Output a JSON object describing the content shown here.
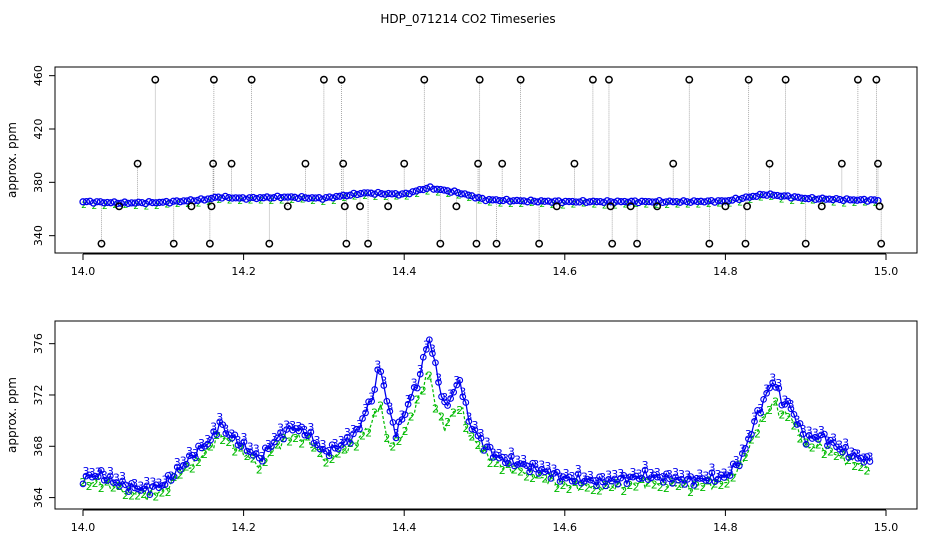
{
  "title": "HDP_071214  CO2 Timeseries",
  "colors": {
    "blue": "#0000ee",
    "green": "#00bb00",
    "cyan": "#00cccc",
    "grey": "#888888",
    "black": "#000000"
  },
  "chart_data": [
    {
      "type": "scatter",
      "title": "HDP_071214  CO2 Timeseries",
      "xlabel": "",
      "ylabel": "approx. ppm",
      "xlim": [
        14.0,
        15.0
      ],
      "ylim": [
        330,
        462
      ],
      "x_ticks": [
        14.0,
        14.2,
        14.4,
        14.6,
        14.8,
        15.0
      ],
      "y_ticks": [
        340,
        380,
        420,
        460
      ],
      "series": [
        {
          "marker": "o",
          "color": "#0000ee",
          "points": [
            [
              14.0,
              365.5
            ],
            [
              14.05,
              364.5
            ],
            [
              14.1,
              365
            ],
            [
              14.15,
              367
            ],
            [
              14.17,
              369
            ],
            [
              14.2,
              368
            ],
            [
              14.25,
              369
            ],
            [
              14.3,
              368
            ],
            [
              14.35,
              372
            ],
            [
              14.4,
              371
            ],
            [
              14.43,
              376
            ],
            [
              14.47,
              372
            ],
            [
              14.5,
              367
            ],
            [
              14.55,
              366
            ],
            [
              14.6,
              365.5
            ],
            [
              14.65,
              365.5
            ],
            [
              14.7,
              365.5
            ],
            [
              14.75,
              365.5
            ],
            [
              14.8,
              366
            ],
            [
              14.85,
              371
            ],
            [
              14.9,
              368
            ],
            [
              14.95,
              367
            ],
            [
              14.99,
              366.5
            ]
          ]
        },
        {
          "marker": "o",
          "color": "#000000",
          "points": [
            [
              14.023,
              334
            ],
            [
              14.045,
              362
            ],
            [
              14.068,
              394
            ],
            [
              14.09,
              457
            ],
            [
              14.113,
              334
            ],
            [
              14.135,
              362
            ],
            [
              14.158,
              334
            ],
            [
              14.16,
              362
            ],
            [
              14.162,
              394
            ],
            [
              14.163,
              457
            ],
            [
              14.185,
              394
            ],
            [
              14.21,
              457
            ],
            [
              14.232,
              334
            ],
            [
              14.255,
              362
            ],
            [
              14.277,
              394
            ],
            [
              14.3,
              457
            ],
            [
              14.322,
              457
            ],
            [
              14.324,
              394
            ],
            [
              14.326,
              362
            ],
            [
              14.328,
              334
            ],
            [
              14.345,
              362
            ],
            [
              14.355,
              334
            ],
            [
              14.38,
              362
            ],
            [
              14.4,
              394
            ],
            [
              14.425,
              457
            ],
            [
              14.445,
              334
            ],
            [
              14.465,
              362
            ],
            [
              14.49,
              334
            ],
            [
              14.492,
              394
            ],
            [
              14.494,
              457
            ],
            [
              14.515,
              334
            ],
            [
              14.522,
              394
            ],
            [
              14.545,
              457
            ],
            [
              14.568,
              334
            ],
            [
              14.59,
              362
            ],
            [
              14.612,
              394
            ],
            [
              14.635,
              457
            ],
            [
              14.655,
              457
            ],
            [
              14.657,
              362
            ],
            [
              14.659,
              334
            ],
            [
              14.682,
              362
            ],
            [
              14.69,
              334
            ],
            [
              14.715,
              362
            ],
            [
              14.735,
              394
            ],
            [
              14.755,
              457
            ],
            [
              14.78,
              334
            ],
            [
              14.8,
              362
            ],
            [
              14.825,
              334
            ],
            [
              14.827,
              362
            ],
            [
              14.829,
              457
            ],
            [
              14.855,
              394
            ],
            [
              14.875,
              457
            ],
            [
              14.9,
              334
            ],
            [
              14.92,
              362
            ],
            [
              14.945,
              394
            ],
            [
              14.965,
              457
            ],
            [
              14.988,
              457
            ],
            [
              14.99,
              394
            ],
            [
              14.992,
              362
            ],
            [
              14.994,
              334
            ]
          ]
        }
      ]
    },
    {
      "type": "line",
      "xlabel": "",
      "ylabel": "approx. ppm",
      "xlim": [
        14.0,
        15.0
      ],
      "ylim": [
        363.5,
        377.3
      ],
      "x_ticks": [
        14.0,
        14.2,
        14.4,
        14.6,
        14.8,
        15.0
      ],
      "y_ticks": [
        364,
        368,
        372,
        376
      ],
      "series": [
        {
          "marker": "3",
          "color": "#0000ee",
          "points": [
            [
              14.0,
              365.5
            ],
            [
              14.02,
              365.8
            ],
            [
              14.04,
              365.2
            ],
            [
              14.06,
              364.8
            ],
            [
              14.08,
              364.6
            ],
            [
              14.1,
              365
            ],
            [
              14.12,
              366.2
            ],
            [
              14.14,
              367.5
            ],
            [
              14.16,
              368.5
            ],
            [
              14.17,
              369.8
            ],
            [
              14.18,
              369
            ],
            [
              14.2,
              368
            ],
            [
              14.22,
              367
            ],
            [
              14.24,
              368.5
            ],
            [
              14.26,
              369.5
            ],
            [
              14.28,
              369
            ],
            [
              14.3,
              367.5
            ],
            [
              14.32,
              368
            ],
            [
              14.34,
              369
            ],
            [
              14.36,
              371.8
            ],
            [
              14.37,
              374.3
            ],
            [
              14.38,
              371
            ],
            [
              14.39,
              369
            ],
            [
              14.4,
              370.5
            ],
            [
              14.41,
              372
            ],
            [
              14.42,
              373.5
            ],
            [
              14.43,
              376.6
            ],
            [
              14.44,
              374
            ],
            [
              14.45,
              371
            ],
            [
              14.46,
              372
            ],
            [
              14.47,
              373.2
            ],
            [
              14.48,
              370
            ],
            [
              14.5,
              368
            ],
            [
              14.52,
              367
            ],
            [
              14.55,
              366.5
            ],
            [
              14.6,
              365.5
            ],
            [
              14.65,
              365.2
            ],
            [
              14.7,
              365.7
            ],
            [
              14.75,
              365.3
            ],
            [
              14.8,
              365.6
            ],
            [
              14.82,
              367
            ],
            [
              14.84,
              370.5
            ],
            [
              14.86,
              373.2
            ],
            [
              14.87,
              371.5
            ],
            [
              14.88,
              371.2
            ],
            [
              14.9,
              368.5
            ],
            [
              14.92,
              368.8
            ],
            [
              14.95,
              367.5
            ],
            [
              14.98,
              366.8
            ]
          ]
        },
        {
          "marker": "2",
          "color": "#00bb00",
          "points": [
            [
              14.0,
              365
            ],
            [
              14.02,
              365.3
            ],
            [
              14.04,
              364.8
            ],
            [
              14.06,
              364.4
            ],
            [
              14.08,
              364.2
            ],
            [
              14.1,
              364.5
            ],
            [
              14.12,
              365.8
            ],
            [
              14.14,
              366.8
            ],
            [
              14.16,
              368
            ],
            [
              14.17,
              369
            ],
            [
              14.18,
              368.5
            ],
            [
              14.2,
              367.5
            ],
            [
              14.22,
              366.5
            ],
            [
              14.24,
              368
            ],
            [
              14.26,
              368.8
            ],
            [
              14.28,
              368.5
            ],
            [
              14.3,
              367
            ],
            [
              14.32,
              367.5
            ],
            [
              14.34,
              368.3
            ],
            [
              14.36,
              369.8
            ],
            [
              14.37,
              371.5
            ],
            [
              14.38,
              368
            ],
            [
              14.39,
              368.5
            ],
            [
              14.4,
              369
            ],
            [
              14.41,
              370.5
            ],
            [
              14.42,
              372
            ],
            [
              14.43,
              374
            ],
            [
              14.44,
              371
            ],
            [
              14.45,
              369.5
            ],
            [
              14.46,
              370.5
            ],
            [
              14.47,
              371.2
            ],
            [
              14.48,
              369
            ],
            [
              14.5,
              367.5
            ],
            [
              14.52,
              366.5
            ],
            [
              14.55,
              366
            ],
            [
              14.6,
              365
            ],
            [
              14.65,
              364.8
            ],
            [
              14.7,
              365.2
            ],
            [
              14.75,
              364.9
            ],
            [
              14.8,
              365.2
            ],
            [
              14.82,
              366.5
            ],
            [
              14.84,
              369.5
            ],
            [
              14.86,
              371.5
            ],
            [
              14.87,
              370.5
            ],
            [
              14.88,
              370.5
            ],
            [
              14.9,
              368
            ],
            [
              14.92,
              368
            ],
            [
              14.95,
              367
            ],
            [
              14.98,
              366.3
            ]
          ]
        }
      ]
    }
  ]
}
